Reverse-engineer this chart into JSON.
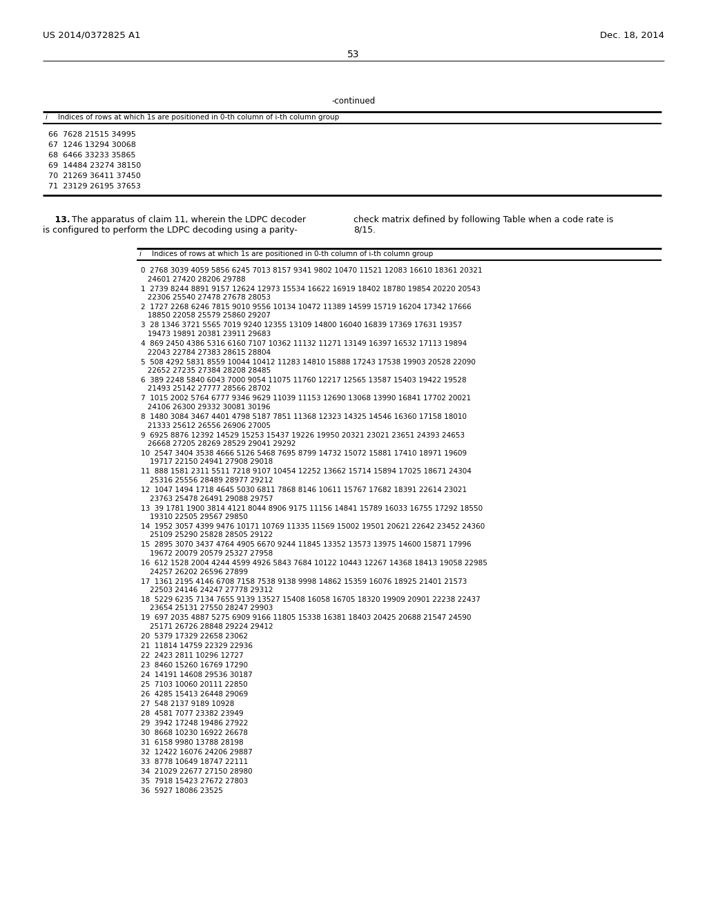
{
  "page_header_left": "US 2014/0372825 A1",
  "page_header_right": "Dec. 18, 2014",
  "page_number": "53",
  "continued_text": "-continued",
  "table1_header_col1": "i",
  "table1_header_col2": "Indices of rows at which 1s are positioned in 0-th column of i-th column group",
  "table1_rows": [
    "66  7628 21515 34995",
    "67  1246 13294 30068",
    "68  6466 33233 35865",
    "69  14484 23274 38150",
    "70  21269 36411 37450",
    "71  23129 26195 37653"
  ],
  "claim_text_left_line1": "    13. The apparatus of claim 11, wherein the LDPC decoder",
  "claim_text_left_line2": "is configured to perform the LDPC decoding using a parity-",
  "claim_text_right_line1": "check matrix defined by following Table when a code rate is",
  "claim_text_right_line2": "8/15.",
  "table2_header_col1": "i",
  "table2_header_col2": "Indices of rows at which 1s are positioned in 0-th column of i-th column group",
  "table2_rows": [
    [
      "0  2768 3039 4059 5856 6245 7013 8157 9341 9802 10470 11521 12083 16610 18361 20321",
      "   24601 27420 28206 29788"
    ],
    [
      "1  2739 8244 8891 9157 12624 12973 15534 16622 16919 18402 18780 19854 20220 20543",
      "   22306 25540 27478 27678 28053"
    ],
    [
      "2  1727 2268 6246 7815 9010 9556 10134 10472 11389 14599 15719 16204 17342 17666",
      "   18850 22058 25579 25860 29207"
    ],
    [
      "3  28 1346 3721 5565 7019 9240 12355 13109 14800 16040 16839 17369 17631 19357",
      "   19473 19891 20381 23911 29683"
    ],
    [
      "4  869 2450 4386 5316 6160 7107 10362 11132 11271 13149 16397 16532 17113 19894",
      "   22043 22784 27383 28615 28804"
    ],
    [
      "5  508 4292 5831 8559 10044 10412 11283 14810 15888 17243 17538 19903 20528 22090",
      "   22652 27235 27384 28208 28485"
    ],
    [
      "6  389 2248 5840 6043 7000 9054 11075 11760 12217 12565 13587 15403 19422 19528",
      "   21493 25142 27777 28566 28702"
    ],
    [
      "7  1015 2002 5764 6777 9346 9629 11039 11153 12690 13068 13990 16841 17702 20021",
      "   24106 26300 29332 30081 30196"
    ],
    [
      "8  1480 3084 3467 4401 4798 5187 7851 11368 12323 14325 14546 16360 17158 18010",
      "   21333 25612 26556 26906 27005"
    ],
    [
      "9  6925 8876 12392 14529 15253 15437 19226 19950 20321 23021 23651 24393 24653",
      "   26668 27205 28269 28529 29041 29292"
    ],
    [
      "10  2547 3404 3538 4666 5126 5468 7695 8799 14732 15072 15881 17410 18971 19609",
      "    19717 22150 24941 27908 29018"
    ],
    [
      "11  888 1581 2311 5511 7218 9107 10454 12252 13662 15714 15894 17025 18671 24304",
      "    25316 25556 28489 28977 29212"
    ],
    [
      "12  1047 1494 1718 4645 5030 6811 7868 8146 10611 15767 17682 18391 22614 23021",
      "    23763 25478 26491 29088 29757"
    ],
    [
      "13  39 1781 1900 3814 4121 8044 8906 9175 11156 14841 15789 16033 16755 17292 18550",
      "    19310 22505 29567 29850"
    ],
    [
      "14  1952 3057 4399 9476 10171 10769 11335 11569 15002 19501 20621 22642 23452 24360",
      "    25109 25290 25828 28505 29122"
    ],
    [
      "15  2895 3070 3437 4764 4905 6670 9244 11845 13352 13573 13975 14600 15871 17996",
      "    19672 20079 20579 25327 27958"
    ],
    [
      "16  612 1528 2004 4244 4599 4926 5843 7684 10122 10443 12267 14368 18413 19058 22985",
      "    24257 26202 26596 27899"
    ],
    [
      "17  1361 2195 4146 6708 7158 7538 9138 9998 14862 15359 16076 18925 21401 21573",
      "    22503 24146 24247 27778 29312"
    ],
    [
      "18  5229 6235 7134 7655 9139 13527 15408 16058 16705 18320 19909 20901 22238 22437",
      "    23654 25131 27550 28247 29903"
    ],
    [
      "19  697 2035 4887 5275 6909 9166 11805 15338 16381 18403 20425 20688 21547 24590",
      "    25171 26726 28848 29224 29412"
    ],
    [
      "20  5379 17329 22658 23062"
    ],
    [
      "21  11814 14759 22329 22936"
    ],
    [
      "22  2423 2811 10296 12727"
    ],
    [
      "23  8460 15260 16769 17290"
    ],
    [
      "24  14191 14608 29536 30187"
    ],
    [
      "25  7103 10060 20111 22850"
    ],
    [
      "26  4285 15413 26448 29069"
    ],
    [
      "27  548 2137 9189 10928"
    ],
    [
      "28  4581 7077 23382 23949"
    ],
    [
      "29  3942 17248 19486 27922"
    ],
    [
      "30  8668 10230 16922 26678"
    ],
    [
      "31  6158 9980 13788 28198"
    ],
    [
      "32  12422 16076 24206 29887"
    ],
    [
      "33  8778 10649 18747 22111"
    ],
    [
      "34  21029 22677 27150 28980"
    ],
    [
      "35  7918 15423 27672 27803"
    ],
    [
      "36  5927 18086 23525"
    ]
  ],
  "bg_color": "#ffffff",
  "text_color": "#000000"
}
